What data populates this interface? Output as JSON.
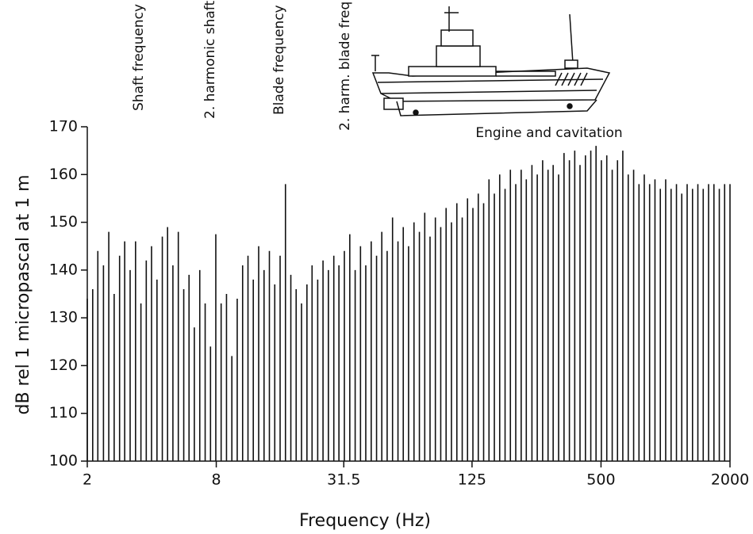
{
  "chart_data": {
    "type": "spectrum",
    "xlabel": "Frequency (Hz)",
    "ylabel": "dB rel 1 micropascal at 1 m",
    "color": "#111111",
    "log_x": true,
    "xlim": [
      2,
      2000
    ],
    "ylim": [
      100,
      170
    ],
    "xticks": [
      2,
      8,
      31.5,
      125,
      500,
      2000
    ],
    "yticks": [
      100,
      110,
      120,
      130,
      140,
      150,
      160,
      170
    ],
    "annotations": [
      "Shaft frequency",
      "2. harmonic shaft",
      "Blade frequency",
      "2. harm. blade freq.",
      "Engine and cavitation"
    ],
    "x": [
      2,
      2.12,
      2.24,
      2.38,
      2.52,
      2.67,
      2.83,
      2.99,
      3.17,
      3.36,
      3.56,
      3.77,
      3.99,
      4.23,
      4.48,
      4.74,
      5.02,
      5.32,
      5.64,
      5.97,
      6.32,
      6.7,
      7.1,
      7.52,
      7.96,
      8.43,
      8.93,
      9.46,
      10.02,
      10.62,
      11.25,
      11.91,
      12.62,
      13.37,
      14.16,
      15.0,
      15.89,
      16.83,
      17.83,
      18.88,
      20,
      21.2,
      22.4,
      23.8,
      25.2,
      26.7,
      28.3,
      29.9,
      31.7,
      33.6,
      35.6,
      37.7,
      39.9,
      42.3,
      44.8,
      47.4,
      50.2,
      53.2,
      56.4,
      59.7,
      63.2,
      67,
      71,
      75.2,
      79.6,
      84.3,
      89.3,
      94.6,
      100.2,
      106.2,
      112.5,
      119.1,
      126.2,
      133.7,
      141.6,
      150,
      158.9,
      168.3,
      178.3,
      188.8,
      200,
      212,
      224,
      238,
      252,
      267,
      283,
      299,
      317,
      336,
      356,
      377,
      399,
      423,
      448,
      474,
      502,
      532,
      564,
      597,
      632,
      670,
      710,
      752,
      796,
      843,
      893,
      946,
      1002,
      1062,
      1125,
      1191,
      1262,
      1337,
      1416,
      1500,
      1589,
      1683,
      1783,
      1888,
      2000
    ],
    "values": [
      134,
      136,
      144,
      141,
      148,
      135,
      143,
      146,
      140,
      146,
      133,
      142,
      145,
      138,
      147,
      149,
      141,
      148,
      136,
      139,
      128,
      140,
      133,
      124,
      147.5,
      133,
      135,
      122,
      134,
      141,
      143,
      138,
      145,
      140,
      144,
      137,
      143,
      158,
      139,
      136,
      133,
      137,
      141,
      138,
      142,
      140,
      143,
      141,
      144,
      147.5,
      140,
      145,
      141,
      146,
      143,
      148,
      144,
      151,
      146,
      149,
      145,
      150,
      148,
      152,
      147,
      151,
      149,
      153,
      150,
      154,
      151,
      155,
      153,
      156,
      154,
      159,
      156,
      160,
      157,
      161,
      158,
      161,
      159,
      162,
      160,
      163,
      161,
      162,
      160,
      164.5,
      163,
      165,
      162,
      164,
      165,
      166,
      163,
      164,
      161,
      163,
      165,
      160,
      161,
      158,
      160,
      158,
      159,
      157,
      159,
      157,
      158,
      156,
      158,
      157,
      158,
      157,
      158,
      158,
      157,
      158,
      158
    ]
  }
}
